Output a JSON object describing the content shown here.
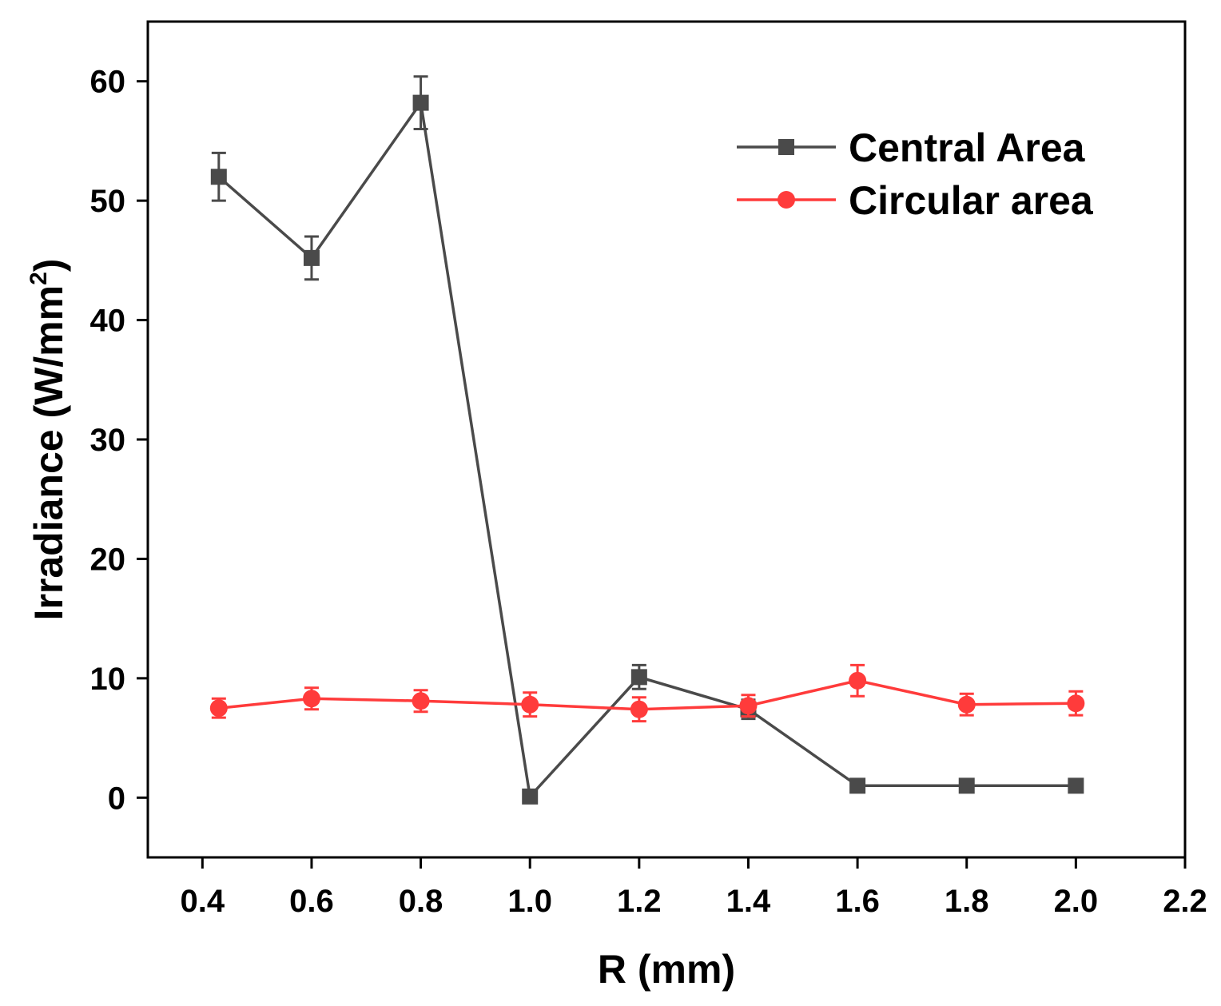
{
  "chart_data": {
    "type": "line",
    "title": "",
    "xlabel": "R (mm)",
    "ylabel": {
      "main": "Irradiance (W/mm",
      "superscript": "2",
      "close": ")"
    },
    "xlim": [
      0.3,
      2.2
    ],
    "ylim": [
      -5,
      65
    ],
    "xticks": [
      0.4,
      0.6,
      0.8,
      1.0,
      1.2,
      1.4,
      1.6,
      1.8,
      2.0,
      2.2
    ],
    "xtick_labels": [
      "0.4",
      "0.6",
      "0.8",
      "1.0",
      "1.2",
      "1.4",
      "1.6",
      "1.8",
      "2.0",
      "2.2"
    ],
    "yticks": [
      0,
      10,
      20,
      30,
      40,
      50,
      60
    ],
    "ytick_labels": [
      "0",
      "10",
      "20",
      "30",
      "40",
      "50",
      "60"
    ],
    "grid": false,
    "legend_position": "top-right",
    "series": [
      {
        "name": "Central Area",
        "color": "#4a4a4a",
        "marker": "square",
        "x": [
          0.43,
          0.6,
          0.8,
          1.0,
          1.2,
          1.4,
          1.6,
          1.8,
          2.0
        ],
        "values": [
          52.0,
          45.2,
          58.2,
          0.1,
          10.1,
          7.4,
          1.0,
          1.0,
          1.0
        ],
        "errors": [
          2.0,
          1.8,
          2.2,
          0.3,
          1.0,
          0.8,
          0.3,
          0.3,
          0.3
        ]
      },
      {
        "name": "Circular area",
        "color": "#ff3b3b",
        "marker": "circle",
        "x": [
          0.43,
          0.6,
          0.8,
          1.0,
          1.2,
          1.4,
          1.6,
          1.8,
          2.0
        ],
        "values": [
          7.5,
          8.3,
          8.1,
          7.8,
          7.4,
          7.7,
          9.8,
          7.8,
          7.9
        ],
        "errors": [
          0.8,
          0.9,
          0.9,
          1.0,
          1.0,
          0.9,
          1.3,
          0.9,
          1.0
        ]
      }
    ]
  }
}
